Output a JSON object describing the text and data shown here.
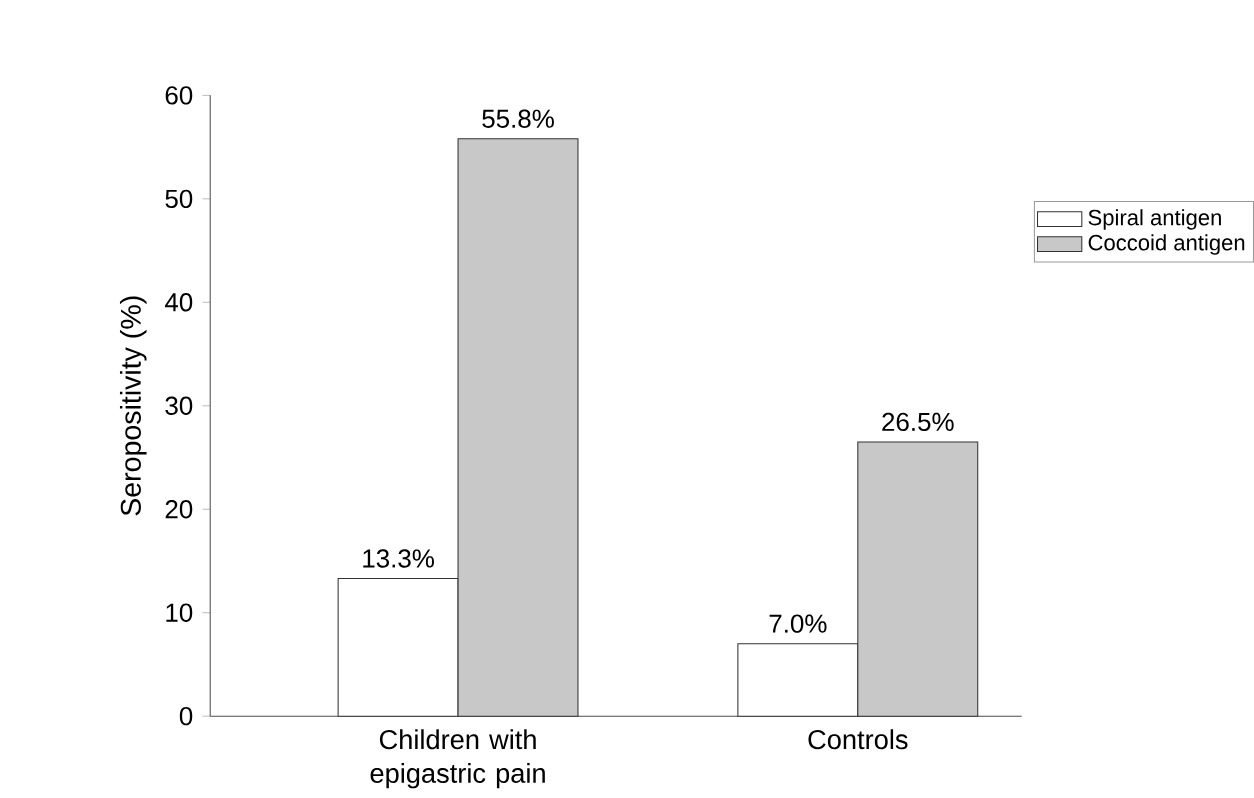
{
  "chart_data": {
    "type": "bar",
    "ylabel": "Seropositivity (%)",
    "categories": [
      "Children with epigastric pain",
      "Controls"
    ],
    "series": [
      {
        "name": "Spiral antigen",
        "color": "#ffffff",
        "values": [
          13.3,
          7.0
        ],
        "value_labels": [
          "13.3%",
          "7.0%"
        ]
      },
      {
        "name": "Coccoid antigen",
        "color": "#c8c8c8",
        "values": [
          55.8,
          26.5
        ],
        "value_labels": [
          "55.8%",
          "26.5%"
        ]
      }
    ],
    "ylim": [
      0,
      60
    ],
    "yticks": [
      0,
      10,
      20,
      30,
      40,
      50,
      60
    ],
    "legend": "right"
  }
}
